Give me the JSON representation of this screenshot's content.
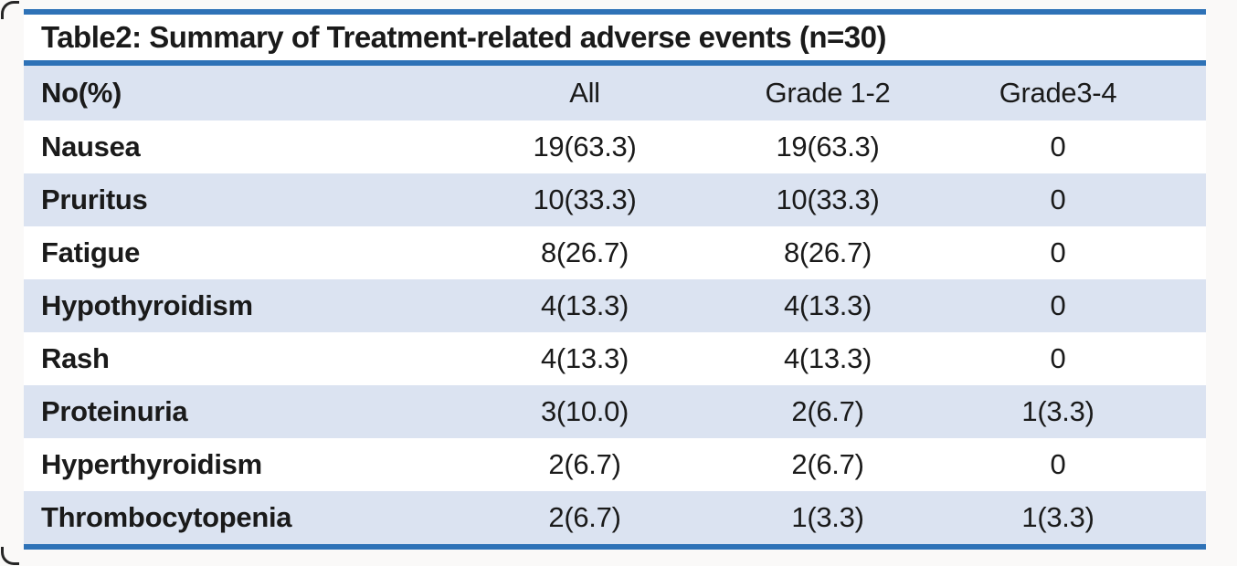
{
  "page": {
    "background_color": "#faf9f8",
    "accent_rule_color": "#2e72b7",
    "band_color": "#dbe3f1",
    "text_color": "#1a1a1a"
  },
  "table": {
    "title": "Table2: Summary of Treatment-related adverse events (n=30)",
    "columns": [
      "No(%)",
      "All",
      "Grade 1-2",
      "Grade3-4"
    ],
    "rows": [
      [
        "Nausea",
        "19(63.3)",
        "19(63.3)",
        "0"
      ],
      [
        "Pruritus",
        "10(33.3)",
        "10(33.3)",
        "0"
      ],
      [
        "Fatigue",
        "8(26.7)",
        "8(26.7)",
        "0"
      ],
      [
        "Hypothyroidism",
        "4(13.3)",
        "4(13.3)",
        "0"
      ],
      [
        "Rash",
        "4(13.3)",
        "4(13.3)",
        "0"
      ],
      [
        "Proteinuria",
        "3(10.0)",
        "2(6.7)",
        "1(3.3)"
      ],
      [
        "Hyperthyroidism",
        "2(6.7)",
        "2(6.7)",
        "0"
      ],
      [
        "Thrombocytopenia",
        "2(6.7)",
        "1(3.3)",
        "1(3.3)"
      ]
    ]
  }
}
